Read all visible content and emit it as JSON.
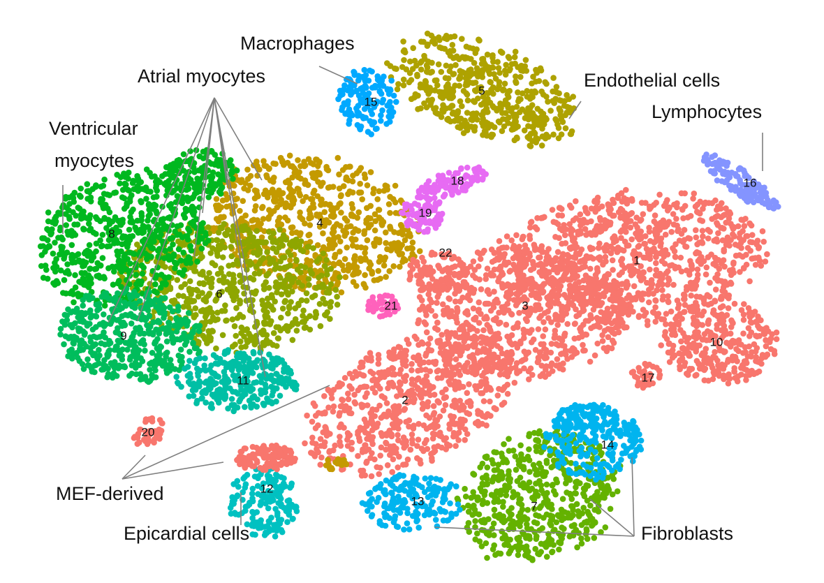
{
  "chart_data": {
    "type": "scatter",
    "title": "",
    "xlabel": "",
    "ylabel": "",
    "clusters": [
      {
        "id": "1",
        "color": "#F8766D"
      },
      {
        "id": "2",
        "color": "#F8766D"
      },
      {
        "id": "3",
        "color": "#F8766D"
      },
      {
        "id": "4",
        "color": "#C49A00"
      },
      {
        "id": "5",
        "color": "#AEA200"
      },
      {
        "id": "6",
        "color": "#8EA600"
      },
      {
        "id": "7",
        "color": "#64B200"
      },
      {
        "id": "8",
        "color": "#00B81F"
      },
      {
        "id": "9",
        "color": "#00BD5C"
      },
      {
        "id": "10",
        "color": "#F8766D"
      },
      {
        "id": "11",
        "color": "#00BFA5"
      },
      {
        "id": "12",
        "color": "#00C1C1"
      },
      {
        "id": "13",
        "color": "#00B4EF"
      },
      {
        "id": "14",
        "color": "#00B4EF"
      },
      {
        "id": "15",
        "color": "#00A9FF"
      },
      {
        "id": "16",
        "color": "#8494FF"
      },
      {
        "id": "17",
        "color": "#F8766D"
      },
      {
        "id": "18",
        "color": "#E76BF3"
      },
      {
        "id": "19",
        "color": "#E76BF3"
      },
      {
        "id": "20",
        "color": "#F8766D"
      },
      {
        "id": "21",
        "color": "#FF62BC"
      },
      {
        "id": "22",
        "color": "#F8766D"
      }
    ],
    "annotations": [
      {
        "id": "atrial",
        "text": "Atrial myocytes",
        "color": "#111111"
      },
      {
        "id": "ventricular",
        "lines": [
          "Ventricular",
          "myocytes"
        ],
        "color": "#111111"
      },
      {
        "id": "macrophages",
        "text": "Macrophages",
        "color": "#111111"
      },
      {
        "id": "endothelial",
        "text": "Endothelial cells",
        "color": "#111111"
      },
      {
        "id": "lymphocytes",
        "text": "Lymphocytes",
        "color": "#111111"
      },
      {
        "id": "mef",
        "text": "MEF-derived",
        "color": "#F0602F"
      },
      {
        "id": "epicardial",
        "text": "Epicardial cells",
        "color": "#17B4BE"
      },
      {
        "id": "fibroblasts",
        "text": "Fibroblasts",
        "color": "#111111"
      }
    ]
  }
}
